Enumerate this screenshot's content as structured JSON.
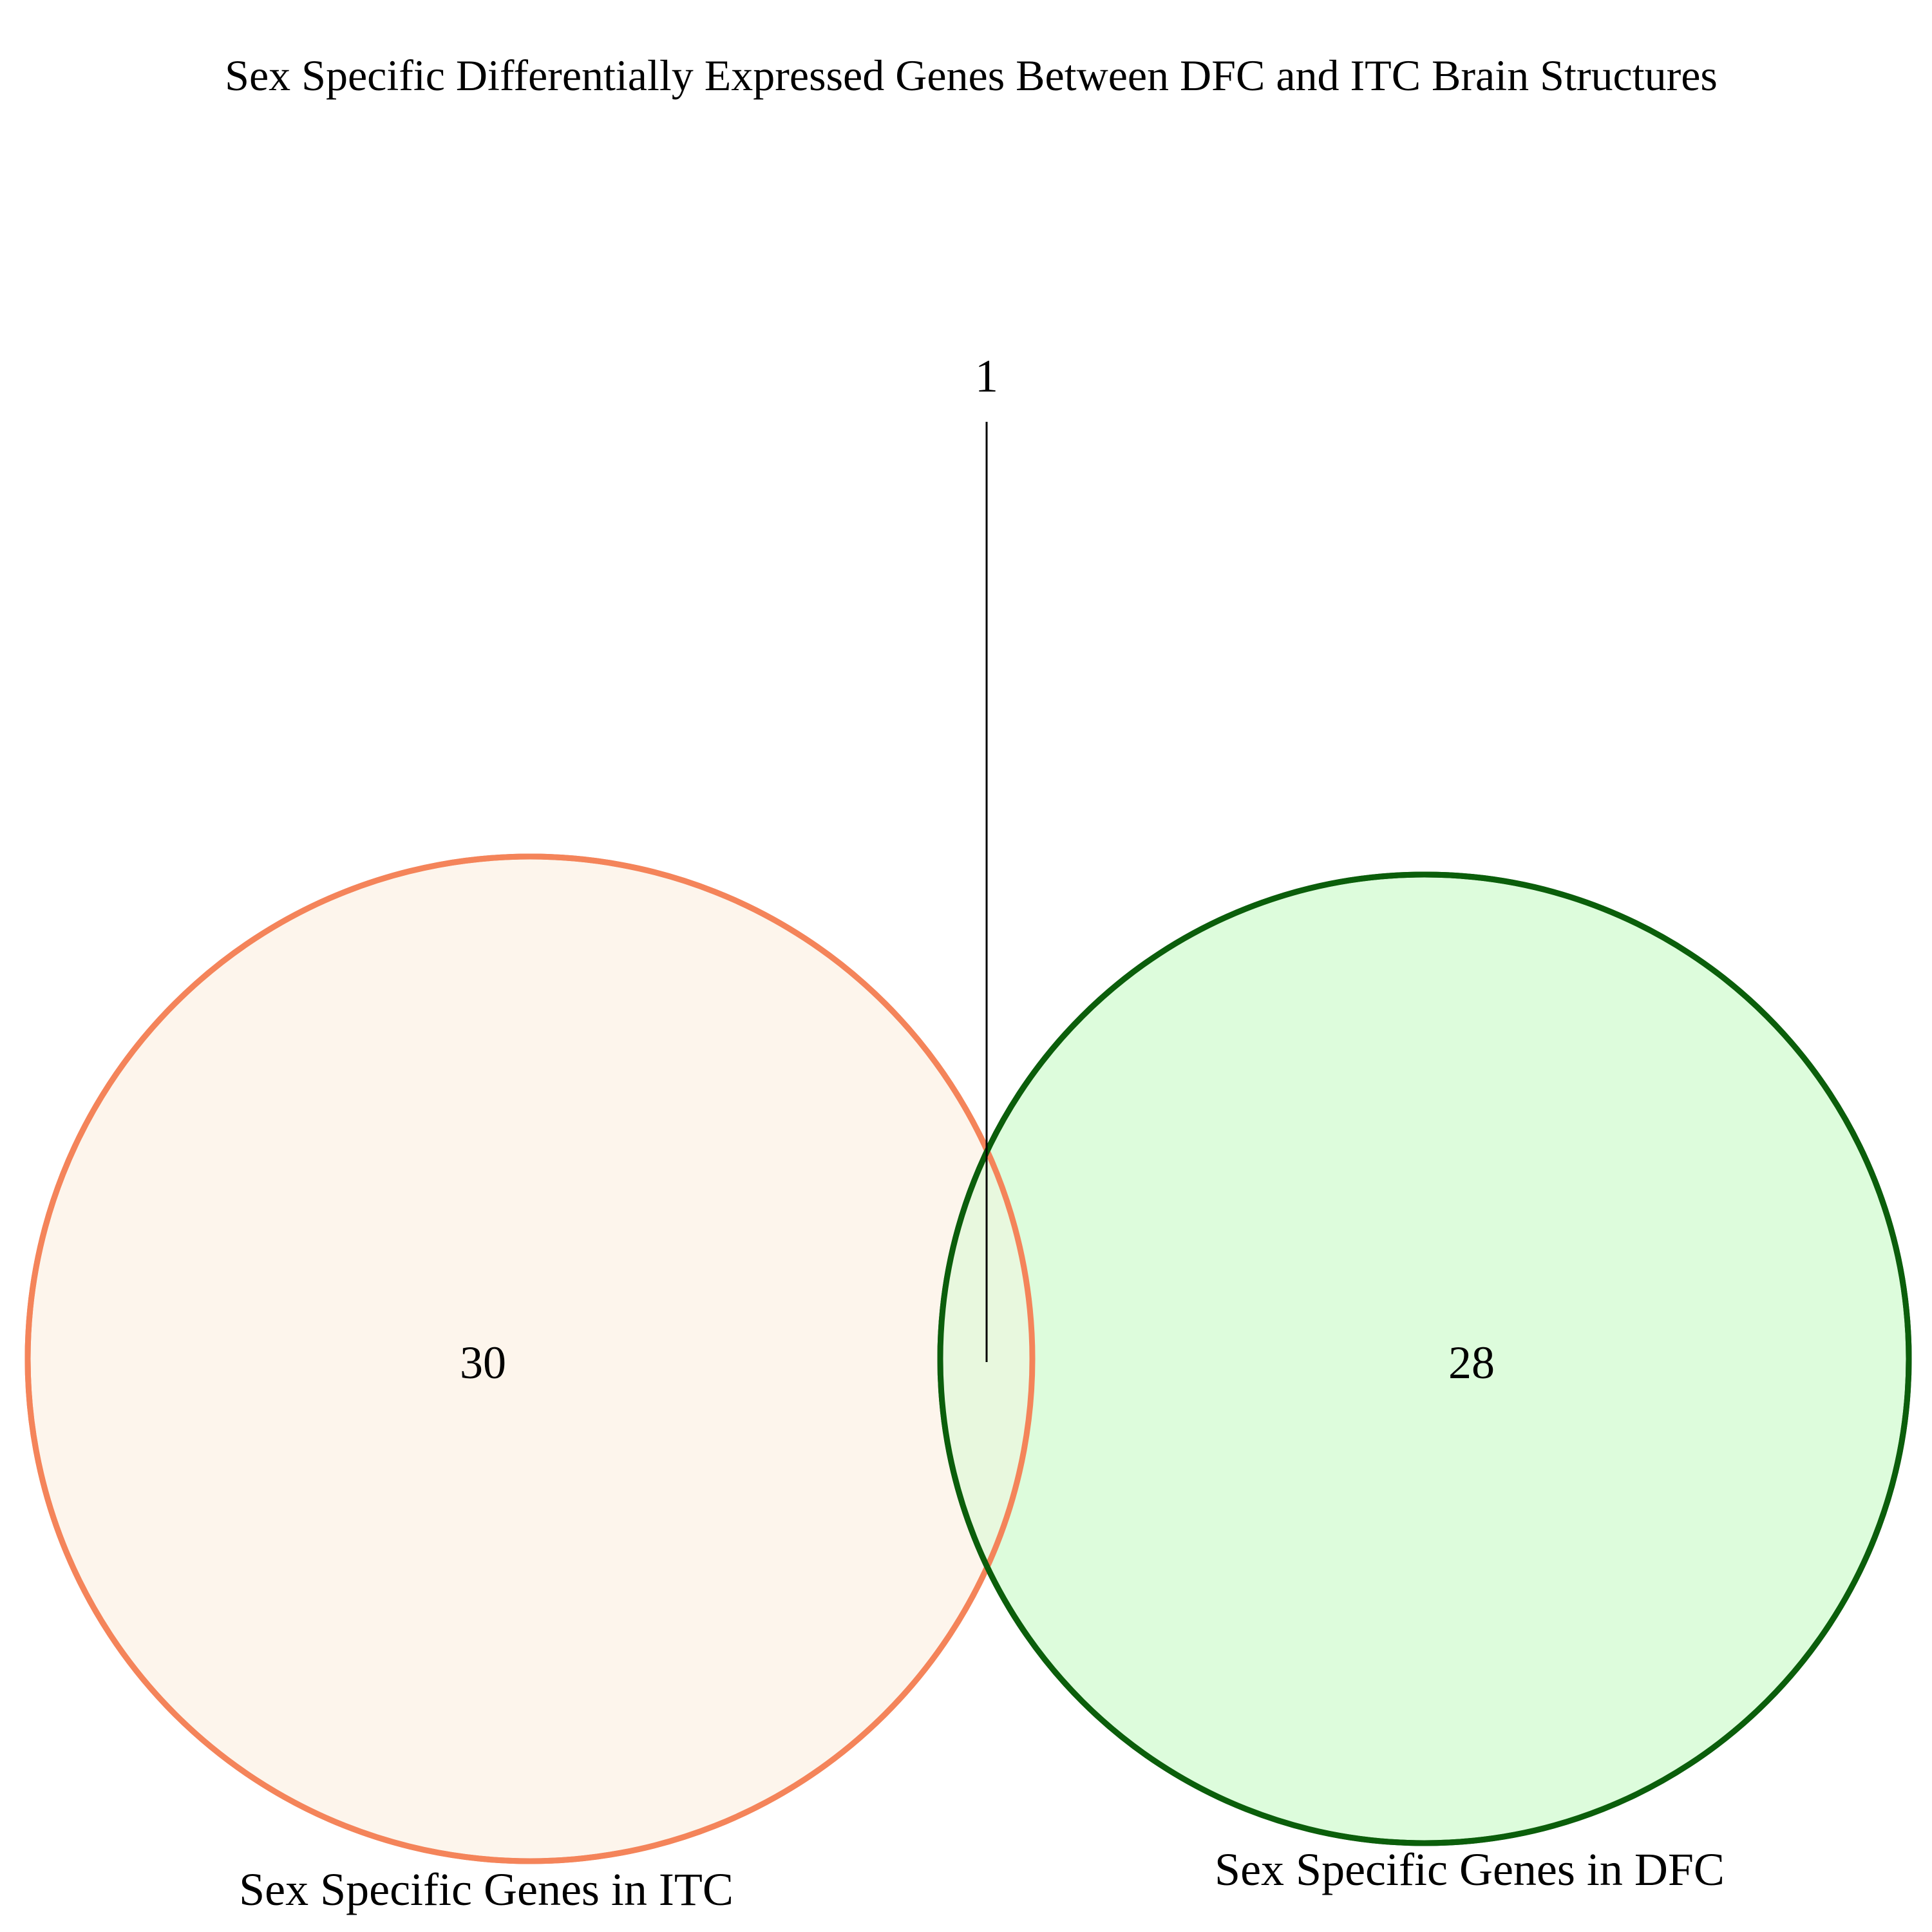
{
  "title": "Sex Specific Differentially Expressed Genes Between DFC and ITC Brain Structures",
  "sets": [
    {
      "label": "Sex Specific Genes in ITC",
      "only_count": "30",
      "fill_color": "#fdf5ec",
      "stroke_color": "#f4845a"
    },
    {
      "label": "Sex Specific Genes in DFC",
      "only_count": "28",
      "fill_color": "#ddfcdc",
      "stroke_color": "#0b5e0b"
    }
  ],
  "overlap": {
    "count": "1",
    "fill_color": "#e8f8de"
  },
  "leader_line_color": "#000000"
}
